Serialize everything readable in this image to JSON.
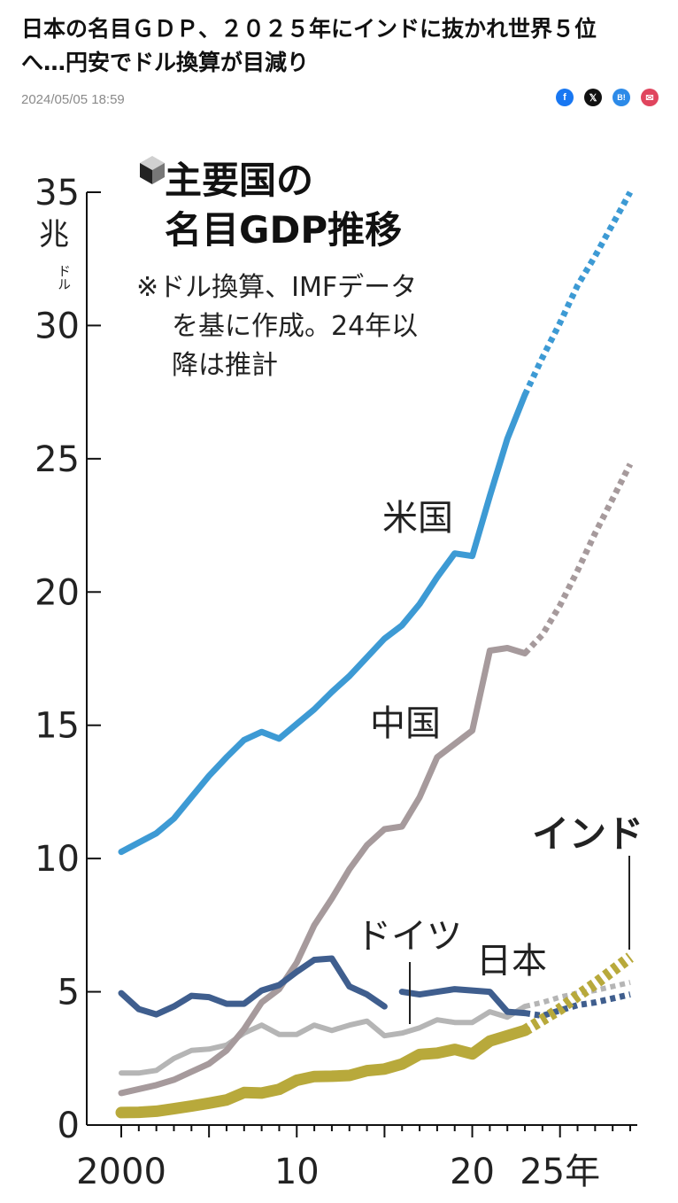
{
  "article": {
    "headline_line1": "日本の名目ＧＤＰ、２０２５年にインドに抜かれ世界５位",
    "headline_line2": "へ…円安でドル換算が目減り",
    "timestamp": "2024/05/05 18:59"
  },
  "share": {
    "facebook": "f",
    "x": "𝕏",
    "hatena": "B!",
    "mail": "✉"
  },
  "colors": {
    "us": "#3d9ad4",
    "china": "#a69a9c",
    "japan": "#3f5e8e",
    "germany": "#b5b5b5",
    "india": "#b8a93b"
  },
  "chart_data": {
    "type": "line",
    "title_line1": "主要国の",
    "title_line2": "名目GDP推移",
    "note_line1": "※ドル換算、IMFデータ",
    "note_line2": "を基に作成。24年以",
    "note_line3": "降は推計",
    "y_unit_main": "兆",
    "y_unit_sub": "ドル",
    "ylim": [
      0,
      35
    ],
    "xlim": [
      2000,
      2029
    ],
    "yticks": [
      0,
      5,
      10,
      15,
      20,
      25,
      30,
      35
    ],
    "xtick_labels": [
      {
        "x": 2000,
        "label": "2000"
      },
      {
        "x": 2010,
        "label": "10"
      },
      {
        "x": 2020,
        "label": "20"
      },
      {
        "x": 2025,
        "label": "25年"
      }
    ],
    "forecast_from": 2023,
    "series": [
      {
        "name": "米国",
        "color_key": "us",
        "x": [
          2000,
          2001,
          2002,
          2003,
          2004,
          2005,
          2006,
          2007,
          2008,
          2009,
          2010,
          2011,
          2012,
          2013,
          2014,
          2015,
          2016,
          2017,
          2018,
          2019,
          2020,
          2021,
          2022,
          2023,
          2024,
          2025,
          2026,
          2027,
          2028,
          2029
        ],
        "values": [
          10.25,
          10.6,
          10.95,
          11.5,
          12.3,
          13.1,
          13.8,
          14.45,
          14.75,
          14.5,
          15.05,
          15.6,
          16.25,
          16.85,
          17.55,
          18.25,
          18.75,
          19.55,
          20.55,
          21.45,
          21.35,
          23.6,
          25.75,
          27.4,
          28.8,
          30.1,
          31.5,
          32.6,
          33.8,
          35.0
        ]
      },
      {
        "name": "中国",
        "color_key": "china",
        "x": [
          2000,
          2001,
          2002,
          2003,
          2004,
          2005,
          2006,
          2007,
          2008,
          2009,
          2010,
          2011,
          2012,
          2013,
          2014,
          2015,
          2016,
          2017,
          2018,
          2019,
          2020,
          2021,
          2022,
          2023,
          2024,
          2025,
          2026,
          2027,
          2028,
          2029
        ],
        "values": [
          1.2,
          1.35,
          1.5,
          1.7,
          2.0,
          2.3,
          2.8,
          3.6,
          4.6,
          5.1,
          6.1,
          7.5,
          8.5,
          9.6,
          10.5,
          11.1,
          11.2,
          12.3,
          13.8,
          14.3,
          14.8,
          17.8,
          17.9,
          17.7,
          18.4,
          19.5,
          20.8,
          22.2,
          23.5,
          24.8
        ]
      },
      {
        "name": "日本",
        "color_key": "japan",
        "x": [
          2000,
          2001,
          2002,
          2003,
          2004,
          2005,
          2006,
          2007,
          2008,
          2009,
          2010,
          2011,
          2012,
          2013,
          2014,
          2015,
          2016,
          2017,
          2018,
          2019,
          2020,
          2021,
          2022,
          2023,
          2024,
          2025,
          2026,
          2027,
          2028,
          2029
        ],
        "values": [
          4.95,
          4.35,
          4.15,
          4.45,
          4.85,
          4.8,
          4.55,
          4.55,
          5.05,
          5.25,
          5.75,
          6.2,
          6.25,
          5.2,
          4.9,
          4.45,
          5.0,
          4.9,
          5.0,
          5.1,
          5.05,
          5.0,
          4.25,
          4.2,
          4.1,
          4.3,
          4.5,
          4.6,
          4.75,
          4.9
        ]
      },
      {
        "name": "ドイツ",
        "color_key": "germany",
        "x": [
          2000,
          2001,
          2002,
          2003,
          2004,
          2005,
          2006,
          2007,
          2008,
          2009,
          2010,
          2011,
          2012,
          2013,
          2014,
          2015,
          2016,
          2017,
          2018,
          2019,
          2020,
          2021,
          2022,
          2023,
          2024,
          2025,
          2026,
          2027,
          2028,
          2029
        ],
        "values": [
          1.95,
          1.95,
          2.05,
          2.5,
          2.8,
          2.85,
          3.0,
          3.45,
          3.75,
          3.4,
          3.4,
          3.75,
          3.55,
          3.75,
          3.9,
          3.35,
          3.45,
          3.65,
          3.95,
          3.85,
          3.85,
          4.25,
          4.05,
          4.45,
          4.6,
          4.8,
          4.95,
          5.05,
          5.2,
          5.35
        ]
      },
      {
        "name": "インド",
        "color_key": "india",
        "x": [
          2000,
          2001,
          2002,
          2003,
          2004,
          2005,
          2006,
          2007,
          2008,
          2009,
          2010,
          2011,
          2012,
          2013,
          2014,
          2015,
          2016,
          2017,
          2018,
          2019,
          2020,
          2021,
          2022,
          2023,
          2024,
          2025,
          2026,
          2027,
          2028,
          2029
        ],
        "values": [
          0.47,
          0.48,
          0.52,
          0.61,
          0.71,
          0.82,
          0.94,
          1.22,
          1.2,
          1.34,
          1.68,
          1.82,
          1.83,
          1.86,
          2.04,
          2.1,
          2.29,
          2.65,
          2.7,
          2.84,
          2.67,
          3.15,
          3.35,
          3.55,
          3.95,
          4.35,
          4.85,
          5.3,
          5.8,
          6.3
        ]
      }
    ]
  }
}
